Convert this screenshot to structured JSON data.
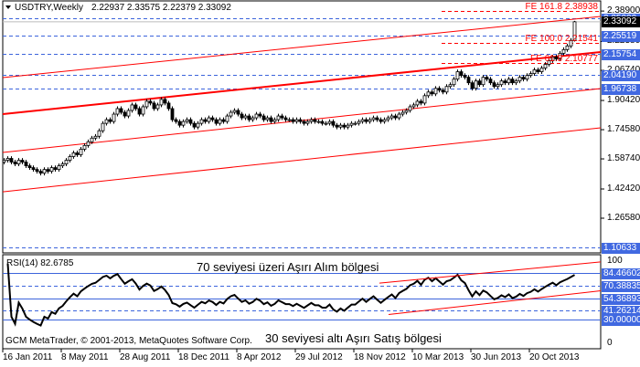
{
  "header": {
    "symbol": "USDTRY,Weekly",
    "ohlc": "2.22937 2.33575 2.22379 2.33092"
  },
  "rsi_header": "RSI(14) 82.6785",
  "annotations": {
    "upper": "70 seviyesi üzeri Aşırı Alım bölgesi",
    "lower": "30 seviyesi altı Aşırı Satış bölgesi"
  },
  "copyright": "GCM MetaTrader, © 2001-2013, MetaQuotes Software Corp.",
  "colors": {
    "bull": "#ffffff",
    "bear": "#000000",
    "trend": "#ff0000",
    "level": "#3c64dc",
    "label_bg": "#4169e1"
  },
  "chart_data": [
    {
      "type": "candlestick",
      "title": "USDTRY,Weekly",
      "x_ticks": [
        "16 Jan 2011",
        "8 May 2011",
        "28 Aug 2011",
        "18 Dec 2011",
        "8 Apr 2012",
        "29 Jul 2012",
        "18 Nov 2012",
        "10 Mar 2013",
        "30 Jun 2013",
        "20 Oct 2013"
      ],
      "y_ticks": [
        "2.38900",
        "2.22380",
        "2.06740",
        "1.90420",
        "1.74580",
        "1.58740",
        "1.42420",
        "1.26580"
      ],
      "ylim": [
        1.10633,
        2.4
      ],
      "last_bar": {
        "open": 2.22937,
        "high": 2.33575,
        "low": 2.22379,
        "close": 2.33092
      },
      "current_price": "2.33092",
      "closes": [
        1.58,
        1.59,
        1.57,
        1.56,
        1.58,
        1.57,
        1.55,
        1.54,
        1.53,
        1.52,
        1.51,
        1.53,
        1.52,
        1.54,
        1.53,
        1.55,
        1.56,
        1.58,
        1.6,
        1.62,
        1.61,
        1.64,
        1.66,
        1.68,
        1.7,
        1.71,
        1.74,
        1.78,
        1.8,
        1.79,
        1.83,
        1.86,
        1.84,
        1.82,
        1.85,
        1.88,
        1.86,
        1.83,
        1.87,
        1.9,
        1.89,
        1.86,
        1.88,
        1.91,
        1.89,
        1.86,
        1.8,
        1.79,
        1.77,
        1.79,
        1.8,
        1.78,
        1.76,
        1.78,
        1.8,
        1.79,
        1.81,
        1.8,
        1.78,
        1.8,
        1.79,
        1.82,
        1.84,
        1.85,
        1.83,
        1.81,
        1.82,
        1.8,
        1.81,
        1.83,
        1.82,
        1.8,
        1.81,
        1.79,
        1.8,
        1.82,
        1.81,
        1.8,
        1.8,
        1.79,
        1.8,
        1.79,
        1.78,
        1.79,
        1.8,
        1.79,
        1.79,
        1.78,
        1.78,
        1.79,
        1.77,
        1.76,
        1.77,
        1.76,
        1.77,
        1.78,
        1.78,
        1.79,
        1.8,
        1.79,
        1.8,
        1.81,
        1.8,
        1.79,
        1.8,
        1.81,
        1.82,
        1.81,
        1.83,
        1.84,
        1.85,
        1.87,
        1.88,
        1.9,
        1.89,
        1.93,
        1.95,
        1.94,
        1.97,
        1.96,
        1.95,
        1.98,
        1.99,
        2.02,
        2.06,
        2.04,
        2.03,
        2.0,
        1.97,
        2.01,
        1.99,
        2.03,
        2.02,
        2.0,
        1.98,
        1.99,
        2.01,
        2.0,
        2.02,
        2.0,
        2.01,
        2.03,
        2.02,
        2.04,
        2.05,
        2.07,
        2.06,
        2.08,
        2.1,
        2.12,
        2.14,
        2.13,
        2.16,
        2.18,
        2.2,
        2.23,
        2.33092
      ],
      "levels_blue": [
        "2.35000",
        "2.25519",
        "2.15754",
        "2.04190",
        "1.96738",
        "1.10633"
      ],
      "fib_levels": [
        {
          "label": "FE 161.8 2.38938",
          "price": 2.38938
        },
        {
          "label": "FE 100.0 2.21541",
          "price": 2.21541
        },
        {
          "label": "FE 61.8 2.10777",
          "price": 2.10777
        }
      ],
      "trendlines": [
        {
          "p0": 2.028,
          "p1": 2.36,
          "width": 1
        },
        {
          "p0": 1.83,
          "p1": 2.167,
          "width": 2
        },
        {
          "p0": 1.622,
          "p1": 1.969,
          "width": 1
        },
        {
          "p0": 1.409,
          "p1": 1.756,
          "width": 1
        }
      ]
    },
    {
      "type": "line",
      "title": "RSI(14)",
      "ylim": [
        0,
        100
      ],
      "y_ticks": [
        "100",
        "0"
      ],
      "levels": [
        {
          "label": "84.46602",
          "value": 84.46602,
          "dash": false
        },
        {
          "label": "70.38835",
          "value": 70.38835,
          "dash": true
        },
        {
          "label": "54.36893",
          "value": 54.36893,
          "dash": false
        },
        {
          "label": "41.26214",
          "value": 41.26214,
          "dash": true
        },
        {
          "label": "30.00000",
          "value": 30,
          "dash": false
        }
      ],
      "last_value": 82.6785
    }
  ]
}
